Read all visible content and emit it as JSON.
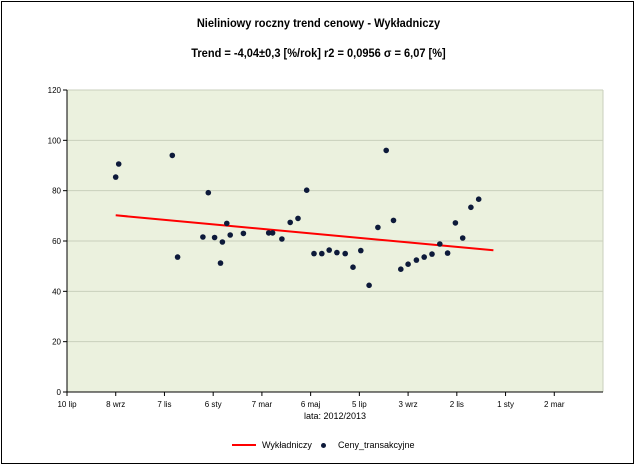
{
  "title_line1": "Nieliniowy roczny trend cenowy -  Wykładniczy",
  "title_line2": "Trend = -4,04±0,3 [%/rok]     r2 = 0,0956     σ = 6,07 [%]",
  "chart_data": {
    "type": "scatter",
    "title": "Nieliniowy roczny trend cenowy -  Wykładniczy",
    "subtitle": "Trend = -4,04±0,3 [%/rok]     r2 = 0,0956     σ = 6,07 [%]",
    "xlabel": "lata:  2012/2013",
    "ylabel": "",
    "ylim": [
      0,
      120
    ],
    "yticks": [
      0,
      20,
      40,
      60,
      80,
      100,
      120
    ],
    "xlim": [
      0,
      11
    ],
    "xtick_labels": [
      "10 lip",
      "8 wrz",
      "7 lis",
      "6 sty",
      "7 mar",
      "6 maj",
      "5 lip",
      "3 wrz",
      "2 lis",
      "1 sty",
      "2 mar"
    ],
    "grid": true,
    "legend_position": "bottom",
    "series": [
      {
        "name": "Wykładniczy",
        "kind": "line",
        "color": "#ff0000",
        "points": [
          [
            1.0,
            70.2
          ],
          [
            8.75,
            56.3
          ]
        ]
      },
      {
        "name": "Ceny_transakcyjne",
        "kind": "scatter",
        "color": "#0d1a3a",
        "points": [
          [
            1.0,
            85.4
          ],
          [
            1.06,
            90.6
          ],
          [
            2.16,
            94.0
          ],
          [
            2.27,
            53.6
          ],
          [
            2.79,
            61.6
          ],
          [
            2.9,
            79.2
          ],
          [
            3.03,
            61.4
          ],
          [
            3.15,
            51.2
          ],
          [
            3.19,
            59.6
          ],
          [
            3.28,
            67.0
          ],
          [
            3.35,
            62.4
          ],
          [
            3.62,
            63.0
          ],
          [
            4.14,
            63.2
          ],
          [
            4.22,
            63.2
          ],
          [
            4.41,
            60.8
          ],
          [
            4.58,
            67.4
          ],
          [
            4.74,
            69.0
          ],
          [
            4.92,
            80.2
          ],
          [
            5.07,
            55.0
          ],
          [
            5.23,
            55.0
          ],
          [
            5.38,
            56.4
          ],
          [
            5.54,
            55.4
          ],
          [
            5.71,
            55.0
          ],
          [
            5.87,
            49.6
          ],
          [
            6.03,
            56.2
          ],
          [
            6.2,
            42.4
          ],
          [
            6.38,
            65.4
          ],
          [
            6.55,
            96.0
          ],
          [
            6.7,
            68.2
          ],
          [
            6.85,
            48.8
          ],
          [
            7.0,
            50.8
          ],
          [
            7.17,
            52.4
          ],
          [
            7.33,
            53.6
          ],
          [
            7.49,
            54.8
          ],
          [
            7.65,
            58.8
          ],
          [
            7.81,
            55.2
          ],
          [
            7.97,
            67.2
          ],
          [
            8.12,
            61.2
          ],
          [
            8.29,
            73.4
          ],
          [
            8.45,
            76.6
          ]
        ]
      }
    ]
  },
  "legend": {
    "line_label": "Wykładniczy",
    "dots_label": "Ceny_transakcyjne"
  }
}
